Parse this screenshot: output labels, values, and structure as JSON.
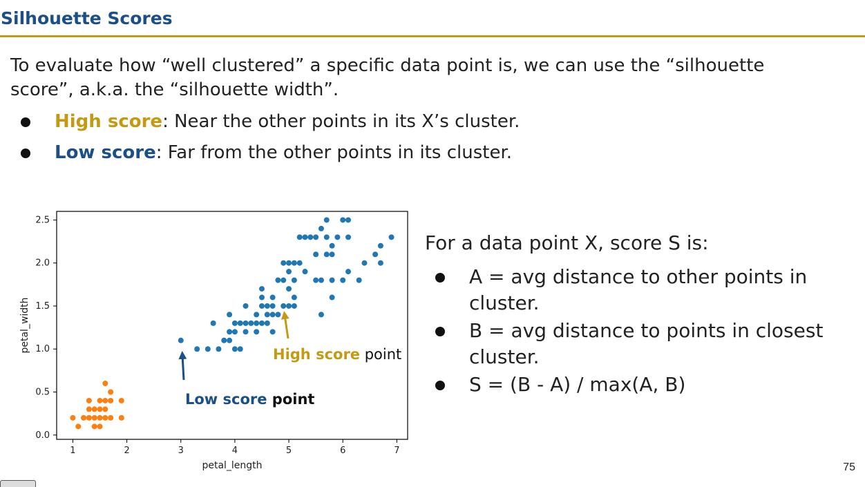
{
  "slide": {
    "title": "Silhouette Scores",
    "intro": "To evaluate how “well clustered” a specific data point is, we can use the “silhouette score”, a.k.a. the “silhouette width”.",
    "bullets": [
      {
        "term": "High score",
        "text": ": Near the other points in its X’s cluster."
      },
      {
        "term": "Low score",
        "text": ": Far from the other points in its cluster."
      }
    ],
    "right_heading": "For a data point X, score S is:",
    "right_bullets": [
      "A = avg distance to other points in cluster.",
      "B = avg distance to points in closest cluster.",
      "S = (B - A) / max(A, B)"
    ],
    "page_number": "75"
  },
  "colors": {
    "accent_gold": "#c49a12",
    "accent_blue": "#1a4f8a",
    "cluster_blue": "#1f77b4",
    "cluster_orange": "#ff7f0e"
  },
  "annotations": {
    "high": {
      "colored": "High score",
      "plain": " point"
    },
    "low": {
      "colored": "Low score",
      "plain": " point"
    }
  },
  "chart_data": {
    "type": "scatter",
    "xlabel": "petal_length",
    "ylabel": "petal_width",
    "xlim": [
      0.7,
      7.2
    ],
    "ylim": [
      -0.05,
      2.6
    ],
    "xticks": [
      1,
      2,
      3,
      4,
      5,
      6,
      7
    ],
    "yticks": [
      0.0,
      0.5,
      1.0,
      1.5,
      2.0,
      2.5
    ],
    "ytick_labels": [
      "0.0",
      "0.5",
      "1.0",
      "1.5",
      "2.0",
      "2.5"
    ],
    "grid": false,
    "series": [
      {
        "color": "#ff7f0e",
        "points": [
          [
            1.0,
            0.2
          ],
          [
            1.1,
            0.1
          ],
          [
            1.2,
            0.2
          ],
          [
            1.3,
            0.2
          ],
          [
            1.3,
            0.3
          ],
          [
            1.3,
            0.4
          ],
          [
            1.4,
            0.1
          ],
          [
            1.4,
            0.2
          ],
          [
            1.4,
            0.3
          ],
          [
            1.5,
            0.1
          ],
          [
            1.5,
            0.2
          ],
          [
            1.5,
            0.3
          ],
          [
            1.5,
            0.4
          ],
          [
            1.6,
            0.2
          ],
          [
            1.6,
            0.4
          ],
          [
            1.6,
            0.6
          ],
          [
            1.7,
            0.2
          ],
          [
            1.7,
            0.4
          ],
          [
            1.7,
            0.5
          ],
          [
            1.6,
            0.3
          ],
          [
            1.9,
            0.2
          ],
          [
            1.9,
            0.4
          ]
        ]
      },
      {
        "color": "#1f77b4",
        "points": [
          [
            3.0,
            1.1
          ],
          [
            3.3,
            1.0
          ],
          [
            3.5,
            1.0
          ],
          [
            3.7,
            1.0
          ],
          [
            3.6,
            1.3
          ],
          [
            3.8,
            1.1
          ],
          [
            3.9,
            1.1
          ],
          [
            3.9,
            1.2
          ],
          [
            3.9,
            1.4
          ],
          [
            4.0,
            1.0
          ],
          [
            4.1,
            1.0
          ],
          [
            4.0,
            1.2
          ],
          [
            4.0,
            1.3
          ],
          [
            4.1,
            1.3
          ],
          [
            4.2,
            1.3
          ],
          [
            4.3,
            1.3
          ],
          [
            4.4,
            1.3
          ],
          [
            4.5,
            1.3
          ],
          [
            4.6,
            1.3
          ],
          [
            4.2,
            1.2
          ],
          [
            4.4,
            1.2
          ],
          [
            4.2,
            1.5
          ],
          [
            4.4,
            1.4
          ],
          [
            4.5,
            1.5
          ],
          [
            4.5,
            1.6
          ],
          [
            4.5,
            1.7
          ],
          [
            4.6,
            1.4
          ],
          [
            4.6,
            1.5
          ],
          [
            4.7,
            1.2
          ],
          [
            4.7,
            1.4
          ],
          [
            4.7,
            1.5
          ],
          [
            4.7,
            1.6
          ],
          [
            4.8,
            1.4
          ],
          [
            4.8,
            1.8
          ],
          [
            4.9,
            1.5
          ],
          [
            4.9,
            1.8
          ],
          [
            4.9,
            2.0
          ],
          [
            5.0,
            1.5
          ],
          [
            5.0,
            1.7
          ],
          [
            5.0,
            1.9
          ],
          [
            5.0,
            2.0
          ],
          [
            5.1,
            1.5
          ],
          [
            5.1,
            1.6
          ],
          [
            5.1,
            1.8
          ],
          [
            5.1,
            2.0
          ],
          [
            5.2,
            2.0
          ],
          [
            5.2,
            2.3
          ],
          [
            5.3,
            1.9
          ],
          [
            5.3,
            2.3
          ],
          [
            5.4,
            2.3
          ],
          [
            5.5,
            2.3
          ],
          [
            5.5,
            2.1
          ],
          [
            5.5,
            1.8
          ],
          [
            5.6,
            1.4
          ],
          [
            5.6,
            1.8
          ],
          [
            5.6,
            2.4
          ],
          [
            5.7,
            2.1
          ],
          [
            5.7,
            2.5
          ],
          [
            5.7,
            2.3
          ],
          [
            5.8,
            1.6
          ],
          [
            5.8,
            1.8
          ],
          [
            5.8,
            2.1
          ],
          [
            5.8,
            2.2
          ],
          [
            5.9,
            2.3
          ],
          [
            6.0,
            1.8
          ],
          [
            6.0,
            2.5
          ],
          [
            6.1,
            1.9
          ],
          [
            6.1,
            2.5
          ],
          [
            6.1,
            2.3
          ],
          [
            6.3,
            1.8
          ],
          [
            6.4,
            2.0
          ],
          [
            6.6,
            2.1
          ],
          [
            6.7,
            2.0
          ],
          [
            6.7,
            2.2
          ],
          [
            6.9,
            2.3
          ]
        ]
      }
    ]
  }
}
